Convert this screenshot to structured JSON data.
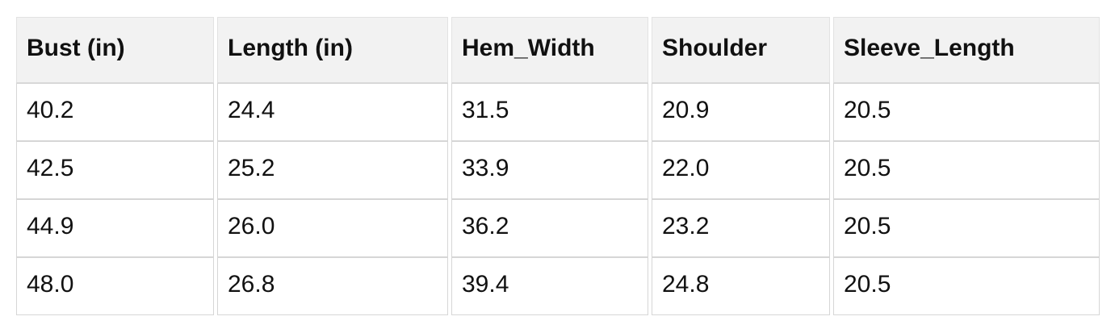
{
  "chart_data": {
    "type": "table",
    "columns": [
      "Bust (in)",
      "Length (in)",
      "Hem_Width",
      "Shoulder",
      "Sleeve_Length"
    ],
    "rows": [
      [
        "40.2",
        "24.4",
        "31.5",
        "20.9",
        "20.5"
      ],
      [
        "42.5",
        "25.2",
        "33.9",
        "22.0",
        "20.5"
      ],
      [
        "44.9",
        "26.0",
        "36.2",
        "23.2",
        "20.5"
      ],
      [
        "48.0",
        "26.8",
        "39.4",
        "24.8",
        "20.5"
      ]
    ]
  },
  "colors": {
    "header_background": "#f2f2f2",
    "cell_border": "#d6d6d6",
    "text": "#111111",
    "page_background": "#ffffff"
  }
}
